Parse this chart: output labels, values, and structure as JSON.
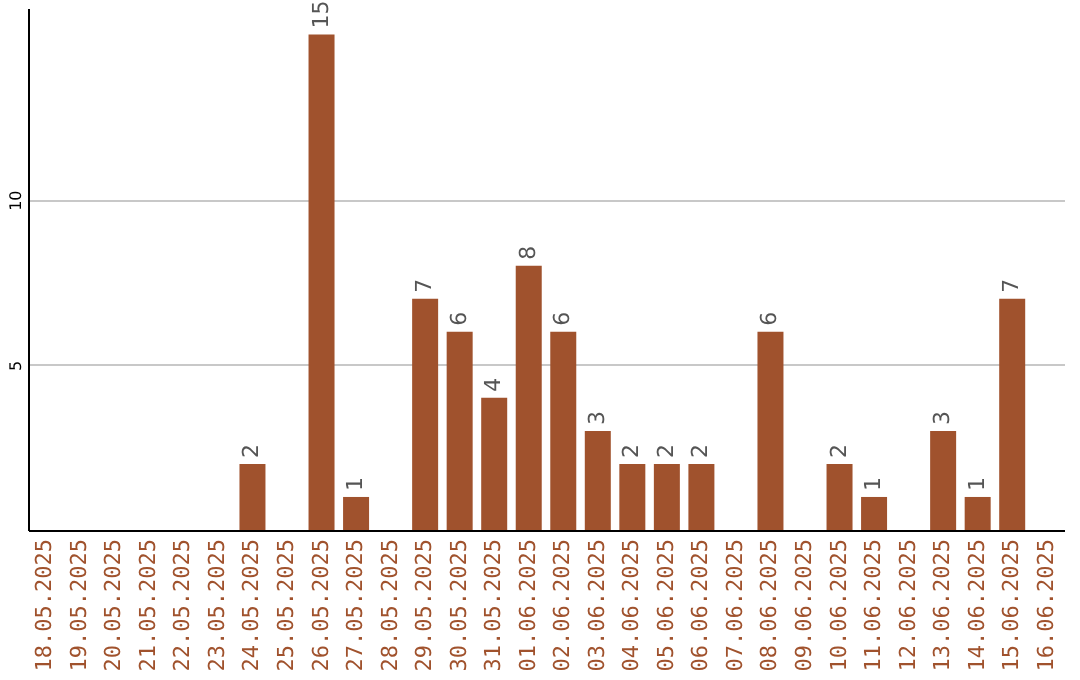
{
  "chart_data": {
    "type": "bar",
    "categories": [
      "18.05.2025",
      "19.05.2025",
      "20.05.2025",
      "21.05.2025",
      "22.05.2025",
      "23.05.2025",
      "24.05.2025",
      "25.05.2025",
      "26.05.2025",
      "27.05.2025",
      "28.05.2025",
      "29.05.2025",
      "30.05.2025",
      "31.05.2025",
      "01.06.2025",
      "02.06.2025",
      "03.06.2025",
      "04.06.2025",
      "05.06.2025",
      "06.06.2025",
      "07.06.2025",
      "08.06.2025",
      "09.06.2025",
      "10.06.2025",
      "11.06.2025",
      "12.06.2025",
      "13.06.2025",
      "14.06.2025",
      "15.06.2025",
      "16.06.2025"
    ],
    "values": [
      0,
      0,
      0,
      0,
      0,
      0,
      2,
      0,
      15,
      1,
      0,
      7,
      6,
      4,
      8,
      6,
      3,
      2,
      2,
      2,
      0,
      6,
      0,
      2,
      1,
      0,
      3,
      1,
      7,
      0
    ],
    "value_labels": [
      null,
      null,
      null,
      null,
      null,
      null,
      "2",
      null,
      "15",
      "1",
      null,
      "7",
      "6",
      "4",
      "8",
      "6",
      "3",
      "2",
      "2",
      "2",
      null,
      "6",
      null,
      "2",
      "1",
      null,
      "3",
      "1",
      "7",
      null
    ],
    "color": "#a0522d",
    "ylim": [
      0,
      15.8
    ],
    "yticks": [
      5,
      10
    ],
    "grid": "y"
  }
}
